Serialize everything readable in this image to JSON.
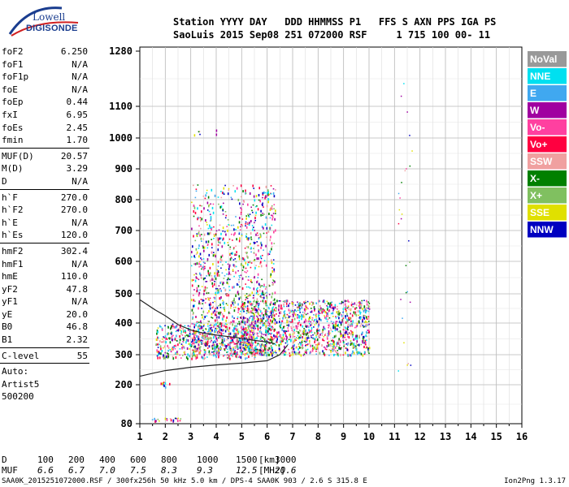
{
  "logo": {
    "line1": "Lowell",
    "line2": "DIGISONDE"
  },
  "header": {
    "line1": "Station YYYY DAY   DDD HHMMSS P1   FFS S AXN PPS IGA PS",
    "line2": "SaoLuis 2015 Sep08 251 072000 RSF     1 715 100 00- 11"
  },
  "params": {
    "group1": [
      {
        "name": "foF2",
        "value": "6.250"
      },
      {
        "name": "foF1",
        "value": "N/A"
      },
      {
        "name": "foF1p",
        "value": "N/A"
      },
      {
        "name": "foE",
        "value": "N/A"
      },
      {
        "name": "foEp",
        "value": "0.44"
      },
      {
        "name": "fxI",
        "value": "6.95"
      },
      {
        "name": "foEs",
        "value": "2.45"
      },
      {
        "name": "fmin",
        "value": "1.70"
      }
    ],
    "group2": [
      {
        "name": "MUF(D)",
        "value": "20.57"
      },
      {
        "name": "M(D)",
        "value": "3.29"
      },
      {
        "name": "D",
        "value": "N/A"
      }
    ],
    "group3": [
      {
        "name": "h`F",
        "value": "270.0"
      },
      {
        "name": "h`F2",
        "value": "270.0"
      },
      {
        "name": "h`E",
        "value": "N/A"
      },
      {
        "name": "h`Es",
        "value": "120.0"
      }
    ],
    "group4": [
      {
        "name": "hmF2",
        "value": "302.4"
      },
      {
        "name": "hmF1",
        "value": "N/A"
      },
      {
        "name": "hmE",
        "value": "110.0"
      },
      {
        "name": "yF2",
        "value": "47.8"
      },
      {
        "name": "yF1",
        "value": "N/A"
      },
      {
        "name": "yE",
        "value": "20.0"
      },
      {
        "name": "B0",
        "value": "46.8"
      },
      {
        "name": "B1",
        "value": "2.32"
      }
    ],
    "group5": [
      {
        "name": "C-level",
        "value": "55"
      }
    ],
    "group6": [
      "Auto:",
      "Artist5",
      "500200"
    ]
  },
  "legend": [
    {
      "label": "NoVal",
      "color": "#999999",
      "text_color": "#ffffff"
    },
    {
      "label": "NNE",
      "color": "#00e0f0",
      "text_color": "#ffffff"
    },
    {
      "label": "E",
      "color": "#40a8f0",
      "text_color": "#ffffff"
    },
    {
      "label": "W",
      "color": "#a000a0",
      "text_color": "#ffffff"
    },
    {
      "label": "Vo-",
      "color": "#ff40a0",
      "text_color": "#ffffff"
    },
    {
      "label": "Vo+",
      "color": "#ff0040",
      "text_color": "#ffffff"
    },
    {
      "label": "SSW",
      "color": "#f0a0a0",
      "text_color": "#ffffff"
    },
    {
      "label": "X-",
      "color": "#008000",
      "text_color": "#ffffff"
    },
    {
      "label": "X+",
      "color": "#80c060",
      "text_color": "#ffffff"
    },
    {
      "label": "SSE",
      "color": "#e0e000",
      "text_color": "#ffffff"
    },
    {
      "label": "NNW",
      "color": "#0000c0",
      "text_color": "#ffffff"
    }
  ],
  "chart_data": {
    "type": "scatter",
    "x_ticks": [
      "1",
      "2",
      "3",
      "4",
      "5",
      "6",
      "7",
      "8",
      "9",
      "10",
      "11",
      "12",
      "13",
      "14",
      "15",
      "16"
    ],
    "y_ticks": [
      "80",
      "200",
      "300",
      "400",
      "500",
      "600",
      "700",
      "800",
      "900",
      "1000",
      "1100",
      "1280"
    ],
    "xlim": [
      1,
      16
    ],
    "ylim": [
      80,
      1280
    ],
    "y_scale": "nonlinear",
    "grid": true,
    "legend_position": "right",
    "trace_curves": [
      {
        "points": [
          [
            1.0,
            228
          ],
          [
            1.5,
            238
          ],
          [
            2.0,
            247
          ],
          [
            3.0,
            258
          ],
          [
            4.0,
            266
          ],
          [
            5.0,
            272
          ],
          [
            6.0,
            280
          ],
          [
            6.5,
            300
          ],
          [
            6.8,
            330
          ]
        ]
      },
      {
        "points": [
          [
            1.0,
            480
          ],
          [
            1.6,
            445
          ],
          [
            2.0,
            425
          ],
          [
            2.5,
            395
          ],
          [
            3.0,
            378
          ],
          [
            3.5,
            368
          ],
          [
            4.0,
            362
          ],
          [
            5.0,
            352
          ],
          [
            5.5,
            345
          ],
          [
            6.0,
            340
          ],
          [
            6.3,
            335
          ]
        ]
      }
    ],
    "echo_regions": [
      {
        "x": [
          3.0,
          6.3
        ],
        "y": [
          300,
          850
        ],
        "density": 0.55
      },
      {
        "x": [
          5.0,
          10.0
        ],
        "y": [
          300,
          480
        ],
        "density": 0.7
      },
      {
        "x": [
          1.6,
          5.5
        ],
        "y": [
          290,
          400
        ],
        "density": 0.6
      },
      {
        "x": [
          1.4,
          2.6
        ],
        "y": [
          90,
          100
        ],
        "density": 0.8
      },
      {
        "x": [
          1.8,
          2.2
        ],
        "y": [
          195,
          210
        ],
        "density": 0.8
      },
      {
        "x": [
          3.0,
          4.0
        ],
        "y": [
          1010,
          1030
        ],
        "density": 0.3
      }
    ]
  },
  "bottom": {
    "d_label": "D",
    "d_values": [
      "100",
      "200",
      "400",
      "600",
      "800",
      "1000",
      "1500",
      "3000"
    ],
    "d_unit": "[km]",
    "muf_label": "MUF",
    "muf_values": [
      "6.6",
      "6.7",
      "7.0",
      "7.5",
      "8.3",
      "9.3",
      "12.5",
      "20.6"
    ],
    "muf_unit": "[MHz]",
    "footer_left": "SAA0K_2015251072000.RSF / 300fx256h 50 kHz 5.0 km / DPS-4 SAA0K 903 / 2.6 S 315.8 E",
    "footer_right": "Ion2Png 1.3.17"
  }
}
